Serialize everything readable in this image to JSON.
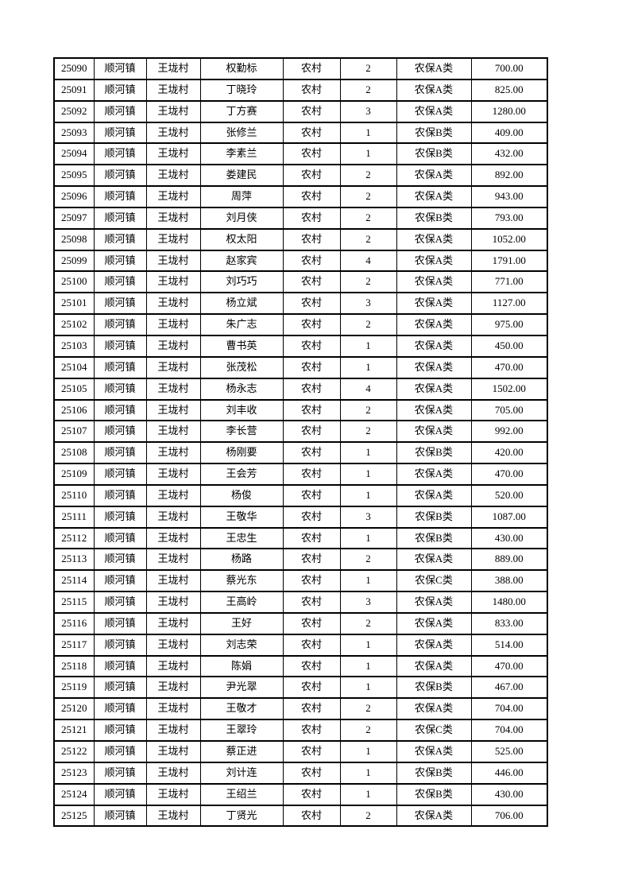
{
  "page": {
    "background_color": "#ffffff",
    "text_color": "#000000",
    "border_color": "#000000"
  },
  "table": {
    "rows": [
      {
        "id": "25090",
        "town": "顺河镇",
        "village": "王垅村",
        "name": "权勤标",
        "residence": "农村",
        "count": "2",
        "category": "农保A类",
        "amount": "700.00"
      },
      {
        "id": "25091",
        "town": "顺河镇",
        "village": "王垅村",
        "name": "丁晓玲",
        "residence": "农村",
        "count": "2",
        "category": "农保A类",
        "amount": "825.00"
      },
      {
        "id": "25092",
        "town": "顺河镇",
        "village": "王垅村",
        "name": "丁方赛",
        "residence": "农村",
        "count": "3",
        "category": "农保A类",
        "amount": "1280.00"
      },
      {
        "id": "25093",
        "town": "顺河镇",
        "village": "王垅村",
        "name": "张修兰",
        "residence": "农村",
        "count": "1",
        "category": "农保B类",
        "amount": "409.00"
      },
      {
        "id": "25094",
        "town": "顺河镇",
        "village": "王垅村",
        "name": "李素兰",
        "residence": "农村",
        "count": "1",
        "category": "农保B类",
        "amount": "432.00"
      },
      {
        "id": "25095",
        "town": "顺河镇",
        "village": "王垅村",
        "name": "娄建民",
        "residence": "农村",
        "count": "2",
        "category": "农保A类",
        "amount": "892.00"
      },
      {
        "id": "25096",
        "town": "顺河镇",
        "village": "王垅村",
        "name": "周萍",
        "residence": "农村",
        "count": "2",
        "category": "农保A类",
        "amount": "943.00"
      },
      {
        "id": "25097",
        "town": "顺河镇",
        "village": "王垅村",
        "name": "刘月侠",
        "residence": "农村",
        "count": "2",
        "category": "农保B类",
        "amount": "793.00"
      },
      {
        "id": "25098",
        "town": "顺河镇",
        "village": "王垅村",
        "name": "权太阳",
        "residence": "农村",
        "count": "2",
        "category": "农保A类",
        "amount": "1052.00"
      },
      {
        "id": "25099",
        "town": "顺河镇",
        "village": "王垅村",
        "name": "赵家宾",
        "residence": "农村",
        "count": "4",
        "category": "农保A类",
        "amount": "1791.00"
      },
      {
        "id": "25100",
        "town": "顺河镇",
        "village": "王垅村",
        "name": "刘巧巧",
        "residence": "农村",
        "count": "2",
        "category": "农保A类",
        "amount": "771.00"
      },
      {
        "id": "25101",
        "town": "顺河镇",
        "village": "王垅村",
        "name": "杨立斌",
        "residence": "农村",
        "count": "3",
        "category": "农保A类",
        "amount": "1127.00"
      },
      {
        "id": "25102",
        "town": "顺河镇",
        "village": "王垅村",
        "name": "朱广志",
        "residence": "农村",
        "count": "2",
        "category": "农保A类",
        "amount": "975.00"
      },
      {
        "id": "25103",
        "town": "顺河镇",
        "village": "王垅村",
        "name": "曹书英",
        "residence": "农村",
        "count": "1",
        "category": "农保A类",
        "amount": "450.00"
      },
      {
        "id": "25104",
        "town": "顺河镇",
        "village": "王垅村",
        "name": "张茂松",
        "residence": "农村",
        "count": "1",
        "category": "农保A类",
        "amount": "470.00"
      },
      {
        "id": "25105",
        "town": "顺河镇",
        "village": "王垅村",
        "name": "杨永志",
        "residence": "农村",
        "count": "4",
        "category": "农保A类",
        "amount": "1502.00"
      },
      {
        "id": "25106",
        "town": "顺河镇",
        "village": "王垅村",
        "name": "刘丰收",
        "residence": "农村",
        "count": "2",
        "category": "农保A类",
        "amount": "705.00"
      },
      {
        "id": "25107",
        "town": "顺河镇",
        "village": "王垅村",
        "name": "李长营",
        "residence": "农村",
        "count": "2",
        "category": "农保A类",
        "amount": "992.00"
      },
      {
        "id": "25108",
        "town": "顺河镇",
        "village": "王垅村",
        "name": "杨刚要",
        "residence": "农村",
        "count": "1",
        "category": "农保B类",
        "amount": "420.00"
      },
      {
        "id": "25109",
        "town": "顺河镇",
        "village": "王垅村",
        "name": "王会芳",
        "residence": "农村",
        "count": "1",
        "category": "农保A类",
        "amount": "470.00"
      },
      {
        "id": "25110",
        "town": "顺河镇",
        "village": "王垅村",
        "name": "杨俊",
        "residence": "农村",
        "count": "1",
        "category": "农保A类",
        "amount": "520.00"
      },
      {
        "id": "25111",
        "town": "顺河镇",
        "village": "王垅村",
        "name": "王敬华",
        "residence": "农村",
        "count": "3",
        "category": "农保B类",
        "amount": "1087.00"
      },
      {
        "id": "25112",
        "town": "顺河镇",
        "village": "王垅村",
        "name": "王忠生",
        "residence": "农村",
        "count": "1",
        "category": "农保B类",
        "amount": "430.00"
      },
      {
        "id": "25113",
        "town": "顺河镇",
        "village": "王垅村",
        "name": "杨路",
        "residence": "农村",
        "count": "2",
        "category": "农保A类",
        "amount": "889.00"
      },
      {
        "id": "25114",
        "town": "顺河镇",
        "village": "王垅村",
        "name": "蔡光东",
        "residence": "农村",
        "count": "1",
        "category": "农保C类",
        "amount": "388.00"
      },
      {
        "id": "25115",
        "town": "顺河镇",
        "village": "王垅村",
        "name": "王高岭",
        "residence": "农村",
        "count": "3",
        "category": "农保A类",
        "amount": "1480.00"
      },
      {
        "id": "25116",
        "town": "顺河镇",
        "village": "王垅村",
        "name": "王好",
        "residence": "农村",
        "count": "2",
        "category": "农保A类",
        "amount": "833.00"
      },
      {
        "id": "25117",
        "town": "顺河镇",
        "village": "王垅村",
        "name": "刘志荣",
        "residence": "农村",
        "count": "1",
        "category": "农保A类",
        "amount": "514.00"
      },
      {
        "id": "25118",
        "town": "顺河镇",
        "village": "王垅村",
        "name": "陈娟",
        "residence": "农村",
        "count": "1",
        "category": "农保A类",
        "amount": "470.00"
      },
      {
        "id": "25119",
        "town": "顺河镇",
        "village": "王垅村",
        "name": "尹光翠",
        "residence": "农村",
        "count": "1",
        "category": "农保B类",
        "amount": "467.00"
      },
      {
        "id": "25120",
        "town": "顺河镇",
        "village": "王垅村",
        "name": "王敬才",
        "residence": "农村",
        "count": "2",
        "category": "农保A类",
        "amount": "704.00"
      },
      {
        "id": "25121",
        "town": "顺河镇",
        "village": "王垅村",
        "name": "王翠玲",
        "residence": "农村",
        "count": "2",
        "category": "农保C类",
        "amount": "704.00"
      },
      {
        "id": "25122",
        "town": "顺河镇",
        "village": "王垅村",
        "name": "蔡正进",
        "residence": "农村",
        "count": "1",
        "category": "农保A类",
        "amount": "525.00"
      },
      {
        "id": "25123",
        "town": "顺河镇",
        "village": "王垅村",
        "name": "刘计连",
        "residence": "农村",
        "count": "1",
        "category": "农保B类",
        "amount": "446.00"
      },
      {
        "id": "25124",
        "town": "顺河镇",
        "village": "王垅村",
        "name": "王绍兰",
        "residence": "农村",
        "count": "1",
        "category": "农保B类",
        "amount": "430.00"
      },
      {
        "id": "25125",
        "town": "顺河镇",
        "village": "王垅村",
        "name": "丁贤光",
        "residence": "农村",
        "count": "2",
        "category": "农保A类",
        "amount": "706.00"
      }
    ]
  }
}
